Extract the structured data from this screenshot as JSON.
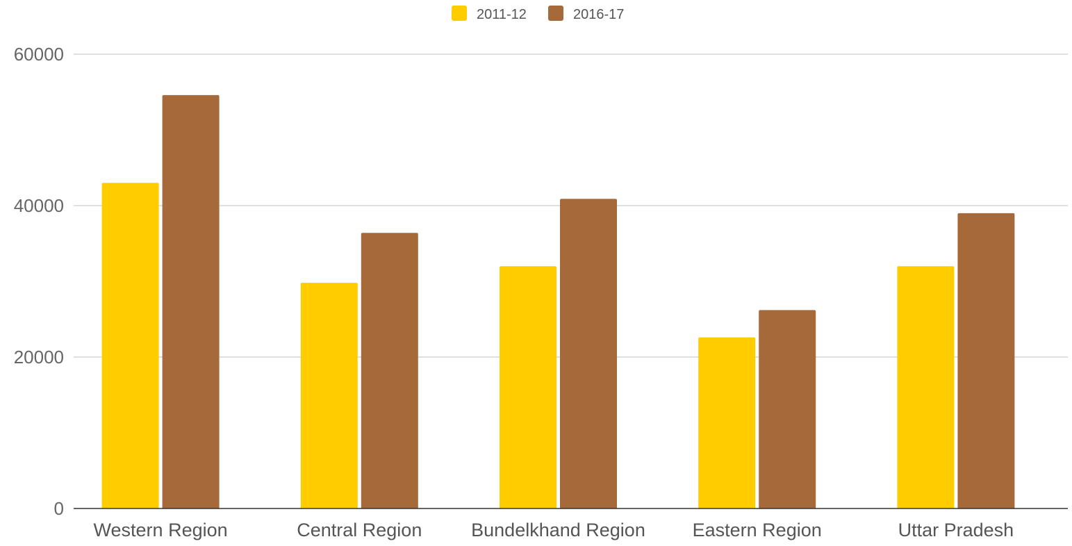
{
  "chart_data": {
    "type": "bar",
    "categories": [
      "Western Region",
      "Central Region",
      "Bundelkhand Region",
      "Eastern Region",
      "Uttar Pradesh"
    ],
    "series": [
      {
        "name": "2011-12",
        "color": "#FFCC00",
        "values": [
          43000,
          29800,
          32000,
          22600,
          32000
        ]
      },
      {
        "name": "2016-17",
        "color": "#A66A3A",
        "values": [
          54600,
          36400,
          40900,
          26200,
          39000
        ]
      }
    ],
    "ylim": [
      0,
      60000
    ],
    "yticks": [
      0,
      20000,
      40000,
      60000
    ],
    "ytick_labels": [
      "0",
      "20000",
      "40000",
      "60000"
    ],
    "grid": true,
    "legend_position": "top-center",
    "title": "",
    "xlabel": "",
    "ylabel": ""
  }
}
